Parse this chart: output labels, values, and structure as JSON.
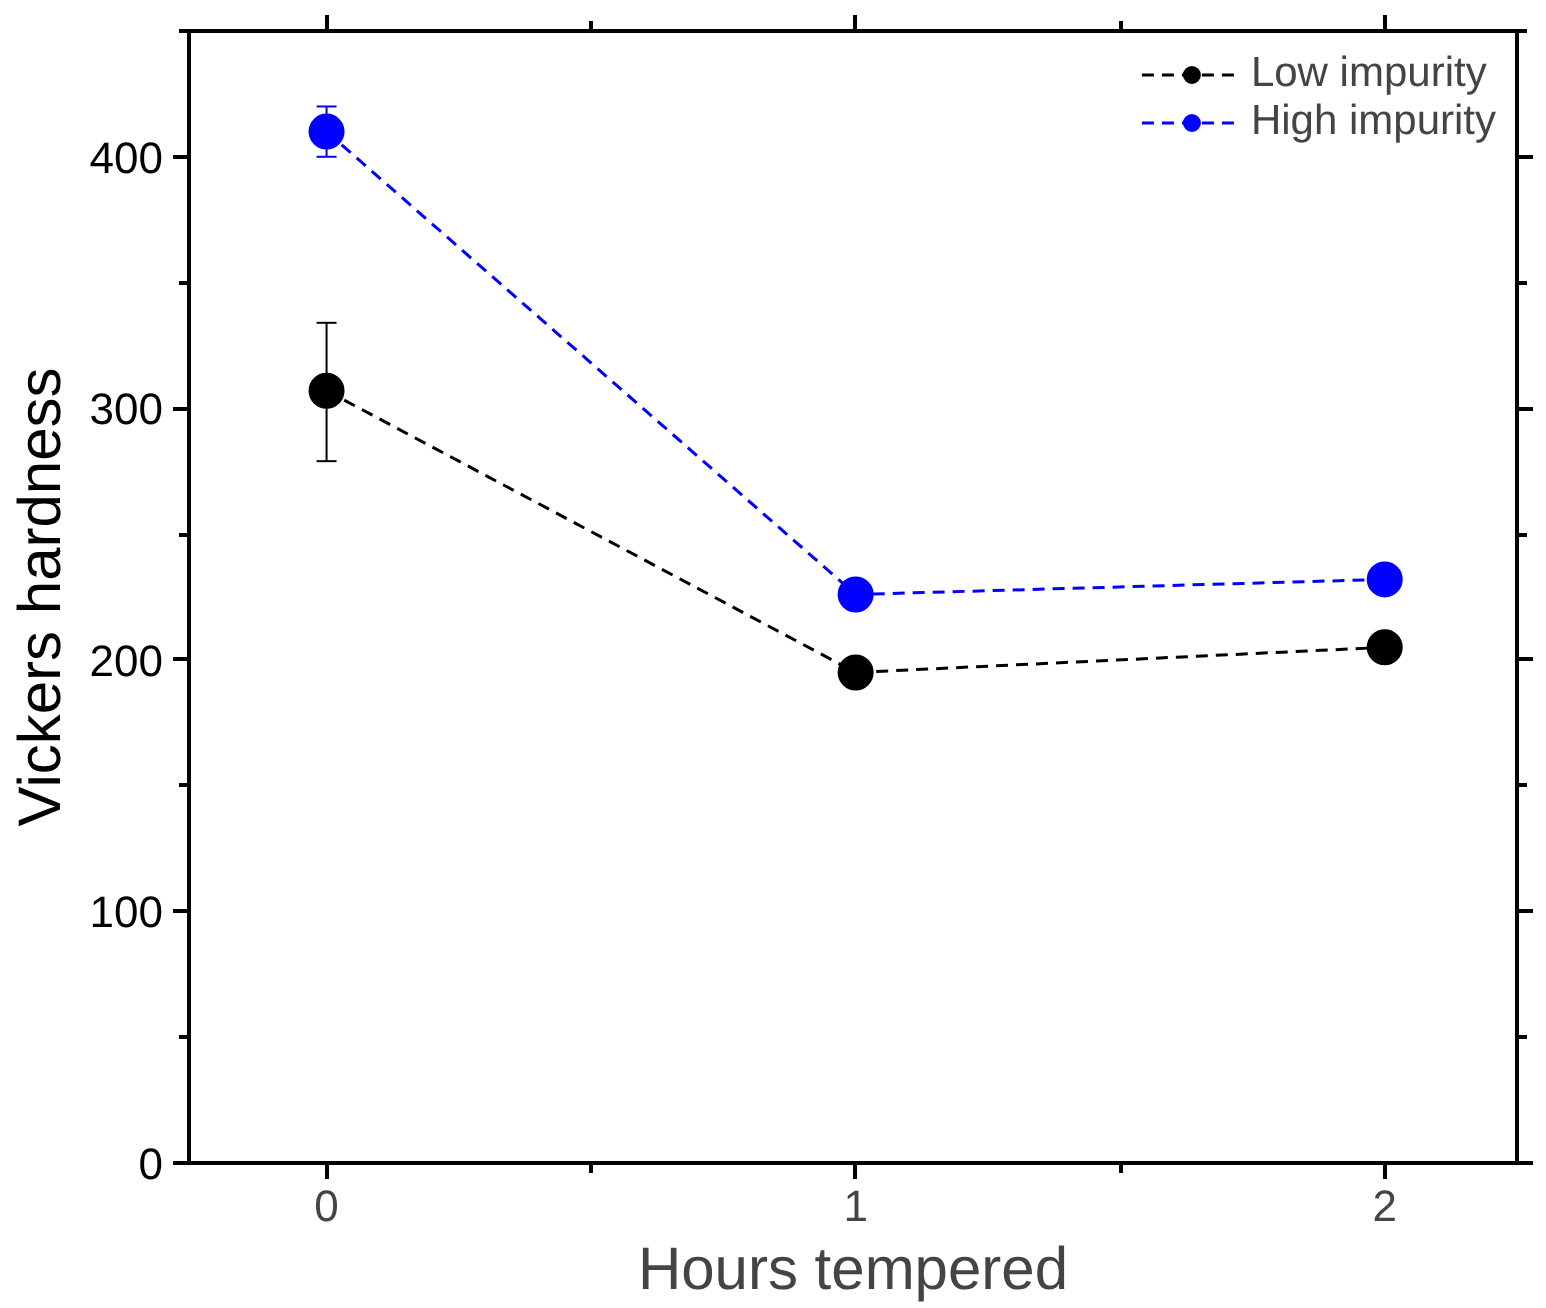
{
  "chart_data": {
    "type": "line",
    "xlabel": "Hours tempered",
    "ylabel": "Vickers hardness",
    "x": [
      0,
      1,
      2
    ],
    "xlim": [
      -0.26,
      2.25
    ],
    "ylim": [
      0,
      450
    ],
    "xticks": [
      0,
      1,
      2
    ],
    "yticks": [
      0,
      100,
      200,
      300,
      400
    ],
    "marker": "circle",
    "line_style": "dashed",
    "legend": "top right",
    "grid": false,
    "series": [
      {
        "name": "Low impurity",
        "color": "#000000",
        "values": [
          307,
          195,
          205
        ],
        "errors": [
          [
            279,
            334
          ],
          null,
          null
        ]
      },
      {
        "name": "High impurity",
        "color": "#0000ff",
        "values": [
          410,
          226,
          232
        ],
        "errors": [
          [
            400,
            420
          ],
          null,
          null
        ]
      }
    ]
  }
}
